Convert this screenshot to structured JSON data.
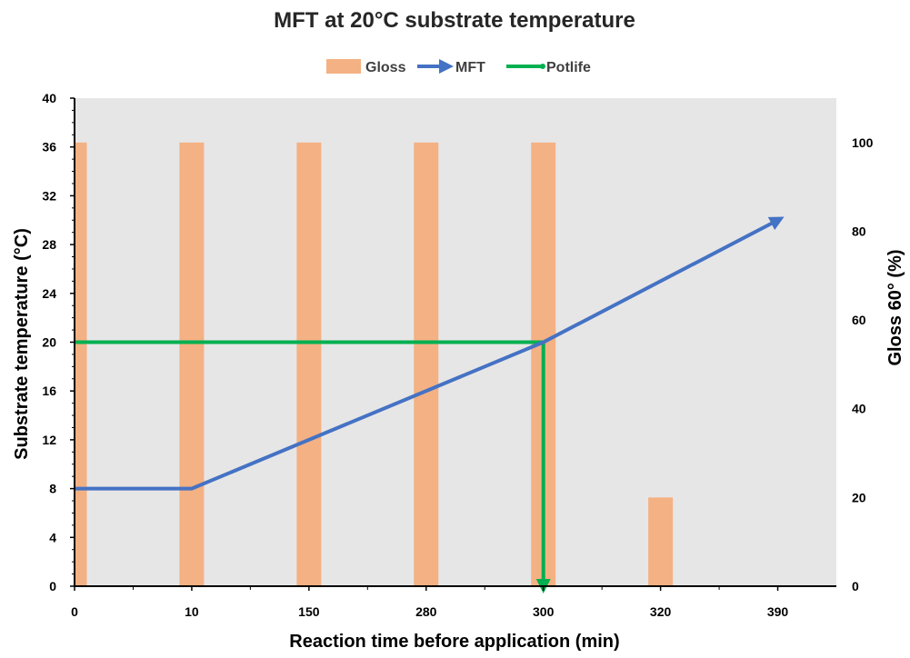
{
  "chart_data": {
    "type": "bar",
    "title": "MFT at 20°C substrate temperature",
    "xlabel": "Reaction time before application (min)",
    "ylabel": "Substrate temperature (°C)",
    "y2label": "Gloss 60° (%)",
    "categories": [
      "0",
      "10",
      "150",
      "280",
      "300",
      "320",
      "390"
    ],
    "ylim": [
      0,
      40
    ],
    "y_ticks": [
      0,
      4,
      8,
      12,
      16,
      20,
      24,
      28,
      32,
      36,
      40
    ],
    "y2lim": [
      0,
      110
    ],
    "y2_ticks": [
      0,
      20,
      40,
      60,
      80,
      100
    ],
    "grid": false,
    "legend_position": "top",
    "series": [
      {
        "name": "Gloss",
        "type": "bar",
        "axis": "right",
        "color": "#f4b183",
        "values": [
          100,
          100,
          100,
          100,
          100,
          20,
          null
        ]
      },
      {
        "name": "MFT",
        "type": "line-arrow",
        "axis": "left",
        "color": "#4472c4",
        "points": [
          [
            0,
            8
          ],
          [
            1,
            8
          ],
          [
            4,
            20
          ],
          [
            6,
            30
          ]
        ]
      },
      {
        "name": "Potlife",
        "type": "line-arrow",
        "axis": "left",
        "color": "#00b050",
        "points": [
          [
            0,
            20
          ],
          [
            4,
            20
          ],
          [
            4,
            0
          ]
        ]
      }
    ],
    "plot_background": "#e7e6e6"
  }
}
